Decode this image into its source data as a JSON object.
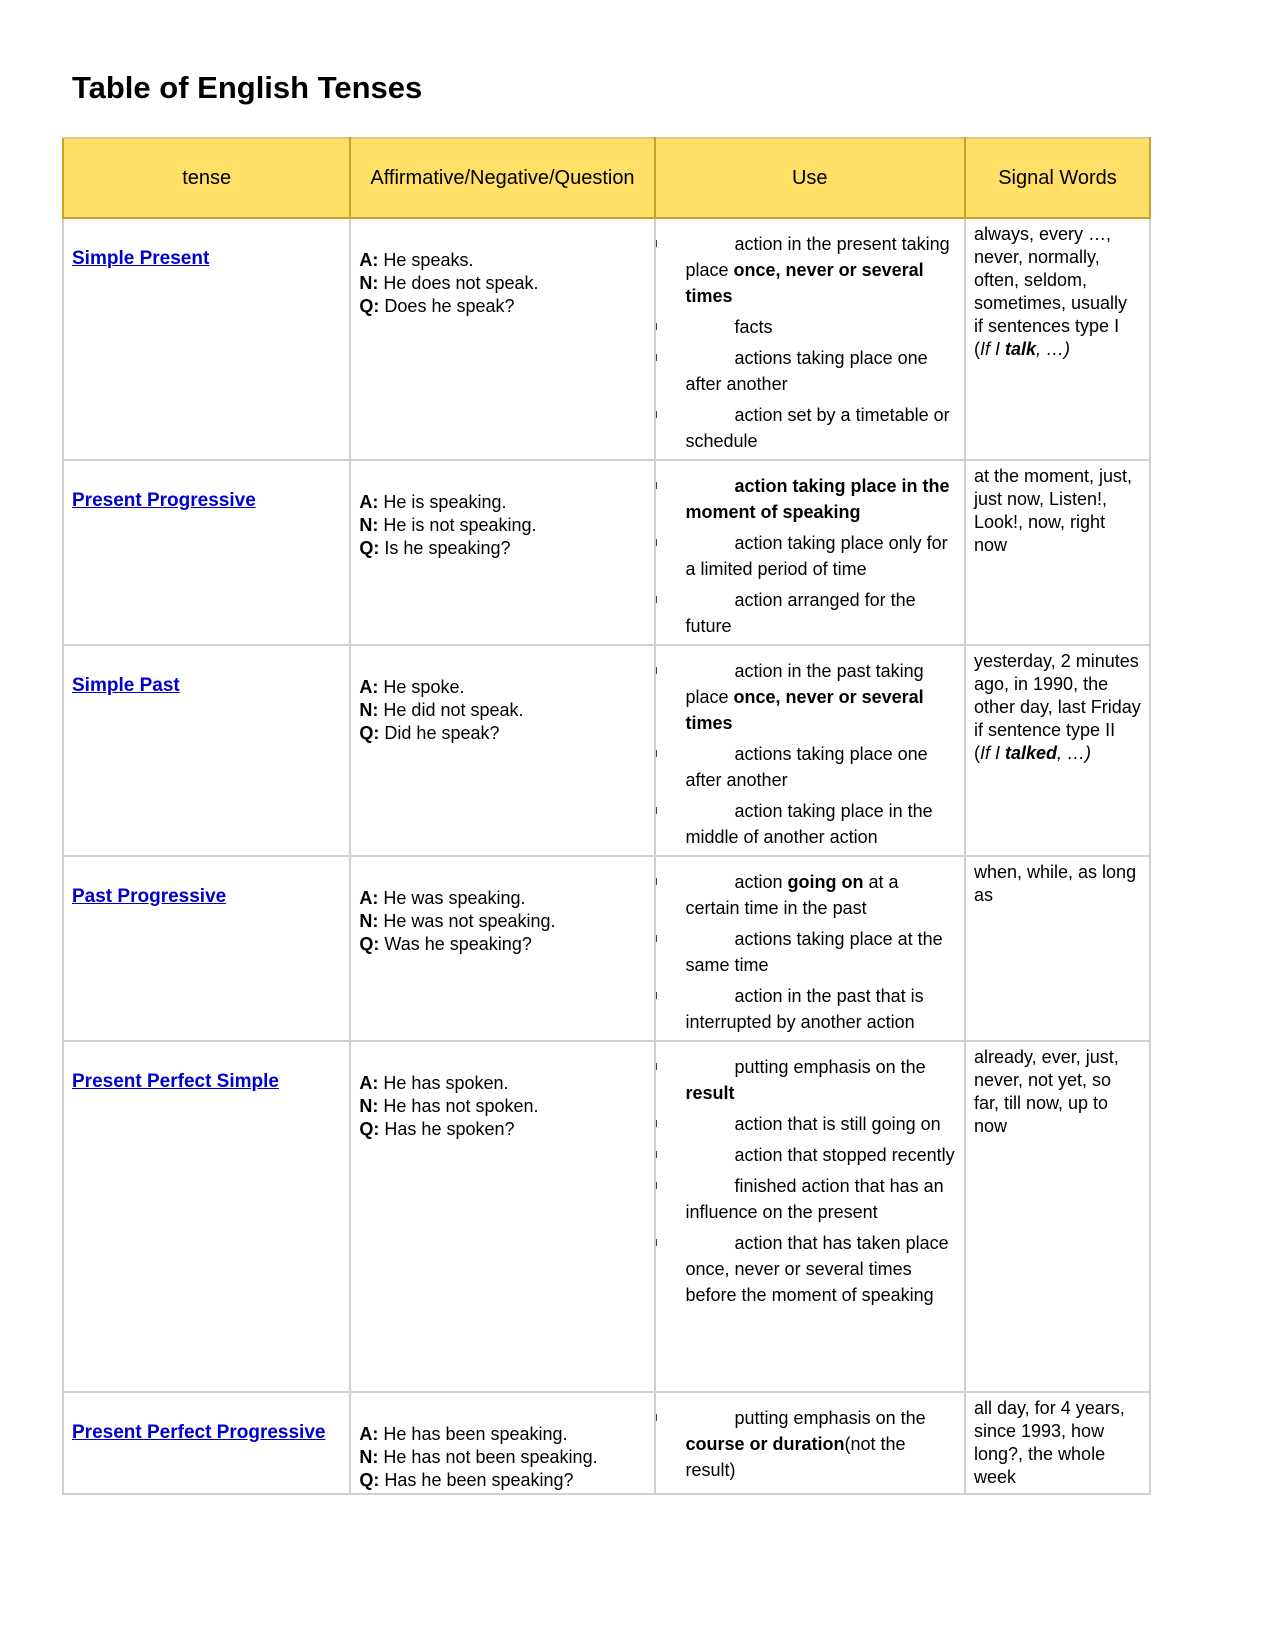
{
  "title": "Table of English Tenses",
  "headers": [
    "tense",
    "Affirmative/Negative/Question",
    "Use",
    "Signal Words"
  ],
  "colors": {
    "header_bg": "#ffdf66",
    "link": "#0000cc"
  },
  "rows": [
    {
      "tense": "Simple Present",
      "forms": [
        [
          "A:",
          " He speaks."
        ],
        [
          "N:",
          " He does not speak."
        ],
        [
          "Q:",
          " Does he speak?"
        ]
      ],
      "use": [
        [
          {
            "t": "action in the present taking place "
          },
          {
            "t": "once, never or several times",
            "b": true
          }
        ],
        [
          {
            "t": "facts"
          }
        ],
        [
          {
            "t": "actions taking place one after another"
          }
        ],
        [
          {
            "t": "action set by a timetable or schedule"
          }
        ]
      ],
      "signal": [
        [
          {
            "t": "always, every …, never, normally, often, seldom, sometimes, usually"
          }
        ],
        [
          {
            "t": "if sentences type I"
          }
        ],
        [
          {
            "t": "("
          },
          {
            "t": "If I ",
            "i": true
          },
          {
            "t": "talk",
            "b": true,
            "i": true
          },
          {
            "t": ", …)",
            "i": true
          }
        ]
      ]
    },
    {
      "tense": "Present Progressive",
      "forms": [
        [
          "A:",
          " He is speaking."
        ],
        [
          "N:",
          " He is not speaking."
        ],
        [
          "Q:",
          " Is he speaking?"
        ]
      ],
      "use": [
        [
          {
            "t": "action taking place in the moment of speaking",
            "b": true
          }
        ],
        [
          {
            "t": "action taking place only for a limited period of time"
          }
        ],
        [
          {
            "t": "action arranged for the future"
          }
        ]
      ],
      "signal": [
        [
          {
            "t": "at the moment, just, just now, Listen!, Look!, now, right now"
          }
        ]
      ]
    },
    {
      "tense": "Simple Past",
      "forms": [
        [
          "A:",
          " He spoke."
        ],
        [
          "N:",
          " He did not speak."
        ],
        [
          "Q:",
          " Did he speak?"
        ]
      ],
      "use": [
        [
          {
            "t": "action in the past taking place "
          },
          {
            "t": "once, never or several times",
            "b": true
          }
        ],
        [
          {
            "t": "actions taking place one after another"
          }
        ],
        [
          {
            "t": "action taking place in the middle of another action"
          }
        ]
      ],
      "signal": [
        [
          {
            "t": "yesterday, 2 minutes ago, in 1990, the other day, last Friday"
          }
        ],
        [
          {
            "t": "if sentence type II"
          }
        ],
        [
          {
            "t": "("
          },
          {
            "t": "If I ",
            "i": true
          },
          {
            "t": "talked",
            "b": true,
            "i": true
          },
          {
            "t": ", …)",
            "i": true
          }
        ]
      ]
    },
    {
      "tense": "Past Progressive",
      "forms": [
        [
          "A:",
          " He was speaking."
        ],
        [
          "N:",
          " He was not speaking."
        ],
        [
          "Q:",
          " Was he speaking?"
        ]
      ],
      "use": [
        [
          {
            "t": "action "
          },
          {
            "t": "going on",
            "b": true
          },
          {
            "t": " at a certain time in the past"
          }
        ],
        [
          {
            "t": "actions taking place at the same time"
          }
        ],
        [
          {
            "t": "action in the past that is interrupted by another action"
          }
        ]
      ],
      "signal": [
        [
          {
            "t": "when, while, as long as"
          }
        ]
      ]
    },
    {
      "tense": "Present Perfect Simple",
      "forms": [
        [
          "A:",
          " He has spoken."
        ],
        [
          "N:",
          " He has not spoken."
        ],
        [
          "Q:",
          " Has he spoken?"
        ]
      ],
      "use": [
        [
          {
            "t": "putting emphasis on the "
          },
          {
            "t": "result",
            "b": true
          }
        ],
        [
          {
            "t": "action that is still going on"
          }
        ],
        [
          {
            "t": "action that stopped recently"
          }
        ],
        [
          {
            "t": "finished action that has an influence on the present"
          }
        ],
        [
          {
            "t": "action that has taken place once, never or several times before the moment of speaking"
          }
        ]
      ],
      "signal": [
        [
          {
            "t": "already, ever, just, never, not yet, so far, till now, up to now"
          }
        ]
      ]
    },
    {
      "tense": "Present Perfect Progressive",
      "forms": [
        [
          "A:",
          " He has been speaking."
        ],
        [
          "N:",
          " He has not been speaking."
        ],
        [
          "Q:",
          " Has he been speaking?"
        ]
      ],
      "use": [
        [
          {
            "t": "putting emphasis on the "
          },
          {
            "t": "course or duration",
            "b": true
          },
          {
            "t": "(not the result)"
          }
        ]
      ],
      "signal": [
        [
          {
            "t": "all day, for 4 years, since 1993, how long?, the whole week"
          }
        ]
      ]
    }
  ]
}
